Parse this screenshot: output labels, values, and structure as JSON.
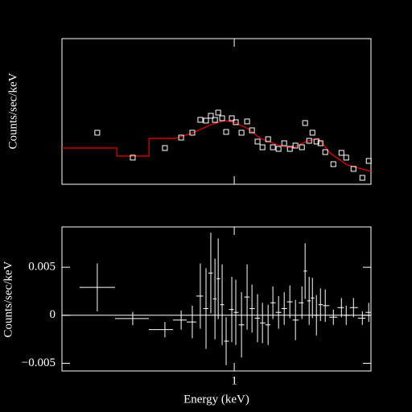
{
  "chart_data": [
    {
      "type": "scatter",
      "ylabel": "Counts/sec/keV",
      "log_x": true,
      "log_y": true,
      "xlim": [
        0.3,
        2.6
      ],
      "ylim": [
        0.001,
        0.223
      ],
      "xticks": [
        1
      ],
      "color": "#ffffff",
      "x": [
        0.384,
        0.492,
        0.616,
        0.69,
        0.746,
        0.789,
        0.821,
        0.849,
        0.874,
        0.894,
        0.919,
        0.945,
        0.983,
        1.011,
        1.052,
        1.094,
        1.132,
        1.177,
        1.218,
        1.267,
        1.31,
        1.363,
        1.418,
        1.475,
        1.534,
        1.605,
        1.641,
        1.688,
        1.727,
        1.776,
        1.827,
        1.889,
        1.999,
        2.115,
        2.187,
        2.301,
        2.448,
        2.56
      ],
      "values": [
        0.00678,
        0.00269,
        0.00384,
        0.00566,
        0.00678,
        0.01094,
        0.01062,
        0.0127,
        0.0109,
        0.0143,
        0.0116,
        0.00698,
        0.0116,
        0.01,
        0.00678,
        0.0103,
        0.00741,
        0.00488,
        0.00395,
        0.00533,
        0.00395,
        0.00372,
        0.00459,
        0.00372,
        0.0042,
        0.00395,
        0.00971,
        0.00502,
        0.00678,
        0.00488,
        0.00459,
        0.0033,
        0.00211,
        0.00321,
        0.00269,
        0.00177,
        0.00127,
        0.00238
      ],
      "model": {
        "color": "#e00000",
        "x": [
          0.3,
          0.44,
          0.44,
          0.551,
          0.551,
          0.663,
          0.75,
          0.85,
          0.93,
          1.0,
          1.1,
          1.2,
          1.35,
          1.5,
          1.65,
          1.8,
          1.95,
          2.2,
          2.6
        ],
        "values": [
          0.00384,
          0.00384,
          0.00285,
          0.00285,
          0.0055,
          0.0055,
          0.00678,
          0.00914,
          0.0106,
          0.01,
          0.00787,
          0.0055,
          0.00432,
          0.00384,
          0.00488,
          0.0055,
          0.00321,
          0.00205,
          0.00161
        ]
      }
    },
    {
      "type": "errorbar",
      "ylabel": "Counts/sec/keV",
      "xlabel": "Energy (keV)",
      "log_x": true,
      "xlim": [
        0.3,
        2.6
      ],
      "ylim": [
        -0.0058,
        0.0092
      ],
      "xticks": [
        1
      ],
      "yticks": [
        {
          "value": -0.005,
          "label": "−0.005"
        },
        0,
        0.005
      ],
      "zero_line": true,
      "color": "#ffffff",
      "x": [
        0.384,
        0.492,
        0.616,
        0.69,
        0.746,
        0.789,
        0.821,
        0.849,
        0.874,
        0.894,
        0.919,
        0.945,
        0.983,
        1.011,
        1.052,
        1.094,
        1.132,
        1.177,
        1.218,
        1.267,
        1.31,
        1.363,
        1.418,
        1.475,
        1.534,
        1.605,
        1.641,
        1.688,
        1.727,
        1.776,
        1.827,
        1.889,
        1.999,
        2.115,
        2.187,
        2.301,
        2.448,
        2.56
      ],
      "values": [
        0.0029,
        -0.00034,
        -0.0015,
        -0.0005,
        -0.0007,
        0.002,
        0.0007,
        0.0044,
        0.0017,
        0.0038,
        0.0011,
        -0.0027,
        0.0006,
        0.0003,
        -0.001,
        0.0019,
        0.0007,
        -0.0003,
        -0.0008,
        -0.001,
        0.0013,
        0.0003,
        0.0007,
        0.0014,
        -0.0005,
        0.0013,
        0.0046,
        0.0015,
        0.0018,
        0.0,
        0.0011,
        0.001,
        -0.0002,
        0.0008,
        0.0,
        0.0008,
        -0.0003,
        0.0003
      ],
      "yerr": [
        0.0025,
        0.0007,
        0.0008,
        0.001,
        0.0017,
        0.0034,
        0.0042,
        0.0042,
        0.0042,
        0.0042,
        0.0042,
        0.0025,
        0.0034,
        0.0034,
        0.0034,
        0.0034,
        0.0025,
        0.0025,
        0.0021,
        0.0021,
        0.0017,
        0.0017,
        0.0017,
        0.0017,
        0.0021,
        0.0017,
        0.0029,
        0.0025,
        0.0021,
        0.0021,
        0.0017,
        0.0017,
        0.0008,
        0.001,
        0.001,
        0.001,
        0.0007,
        0.001
      ]
    }
  ]
}
